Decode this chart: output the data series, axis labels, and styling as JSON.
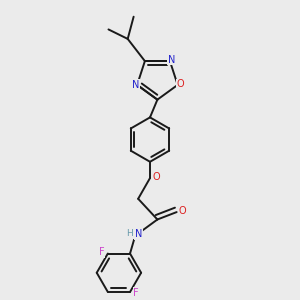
{
  "background_color": "#ebebeb",
  "bond_color": "#1a1a1a",
  "nitrogen_color": "#2222cc",
  "oxygen_color": "#dd2222",
  "fluorine_color": "#cc44cc",
  "hydrogen_color": "#6699aa",
  "line_width": 1.4,
  "figsize": [
    3.0,
    3.0
  ],
  "dpi": 100,
  "xlim": [
    0.1,
    0.9
  ],
  "ylim": [
    0.02,
    1.02
  ]
}
